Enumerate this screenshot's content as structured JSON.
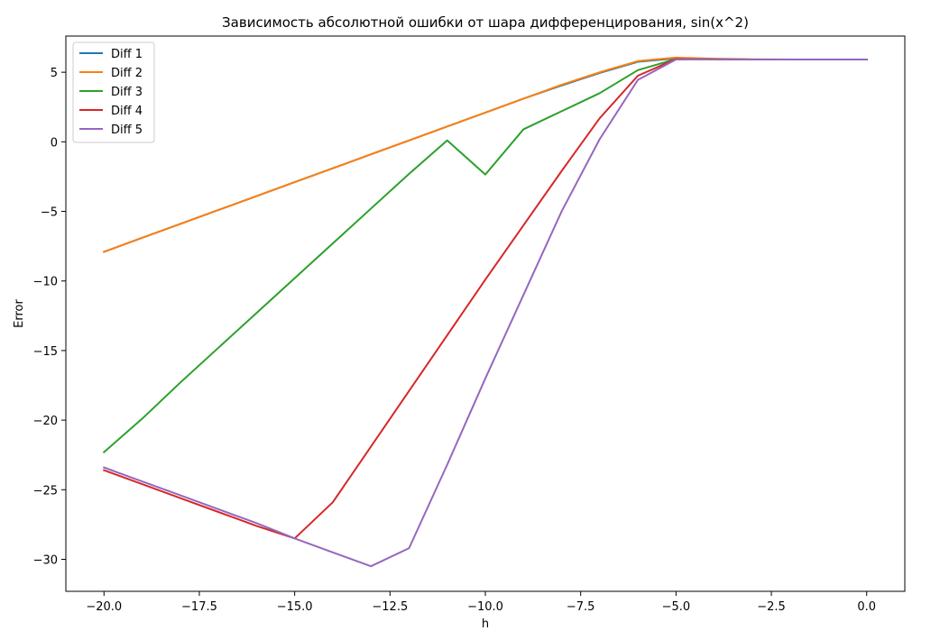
{
  "chart_data": {
    "type": "line",
    "title": "Зависимость абсолютной ошибки от шара дифференцирования, sin(x^2)",
    "xlabel": "h",
    "ylabel": "Error",
    "xlim": [
      -21,
      1
    ],
    "ylim": [
      -32.3,
      7.6
    ],
    "xticks": [
      -20.0,
      -17.5,
      -15.0,
      -12.5,
      -10.0,
      -7.5,
      -5.0,
      -2.5,
      0.0
    ],
    "xtick_labels": [
      "−20.0",
      "−17.5",
      "−15.0",
      "−12.5",
      "−10.0",
      "−7.5",
      "−5.0",
      "−2.5",
      "0.0"
    ],
    "yticks": [
      5,
      0,
      -5,
      -10,
      -15,
      -20,
      -25,
      -30
    ],
    "ytick_labels": [
      "5",
      "0",
      "−5",
      "−10",
      "−15",
      "−20",
      "−25",
      "−30"
    ],
    "grid": false,
    "legend_position": "top-left",
    "x": [
      -20,
      -19,
      -18,
      -17,
      -16,
      -15,
      -14,
      -13,
      -12,
      -11,
      -10,
      -9,
      -8,
      -7,
      -6,
      -5,
      -4,
      -3,
      -2,
      -1,
      0
    ],
    "series": [
      {
        "name": "Diff 1",
        "color": "#1f77b4",
        "values": [
          -7.9,
          -6.9,
          -5.9,
          -4.9,
          -3.9,
          -2.9,
          -1.9,
          -0.9,
          0.1,
          1.1,
          2.1,
          3.1,
          4.05,
          4.95,
          5.75,
          6.0,
          5.95,
          5.92,
          5.92,
          5.92,
          5.92
        ]
      },
      {
        "name": "Diff 2",
        "color": "#ff7f0e",
        "values": [
          -7.9,
          -6.9,
          -5.9,
          -4.9,
          -3.9,
          -2.9,
          -1.9,
          -0.9,
          0.1,
          1.1,
          2.1,
          3.1,
          4.1,
          5.0,
          5.8,
          6.05,
          5.97,
          5.93,
          5.92,
          5.92,
          5.92
        ]
      },
      {
        "name": "Diff 3",
        "color": "#2ca02c",
        "values": [
          -22.3,
          -19.9,
          -17.3,
          -14.8,
          -12.3,
          -9.8,
          -7.3,
          -4.8,
          -2.3,
          0.1,
          -2.35,
          0.9,
          2.2,
          3.5,
          5.15,
          5.95,
          5.93,
          5.92,
          5.92,
          5.92,
          5.92
        ]
      },
      {
        "name": "Diff 4",
        "color": "#d62728",
        "values": [
          -23.6,
          -24.6,
          -25.6,
          -26.6,
          -27.6,
          -28.5,
          -25.9,
          -21.9,
          -17.9,
          -13.9,
          -9.9,
          -6.0,
          -2.1,
          1.7,
          4.75,
          5.95,
          5.93,
          5.92,
          5.92,
          5.92,
          5.92
        ]
      },
      {
        "name": "Diff 5",
        "color": "#9467bd",
        "values": [
          -23.4,
          -24.4,
          -25.4,
          -26.4,
          -27.4,
          -28.5,
          -29.5,
          -30.5,
          -29.2,
          -23.2,
          -17.0,
          -11.0,
          -5.0,
          0.2,
          4.45,
          5.92,
          5.93,
          5.92,
          5.92,
          5.92,
          5.92
        ]
      }
    ]
  }
}
